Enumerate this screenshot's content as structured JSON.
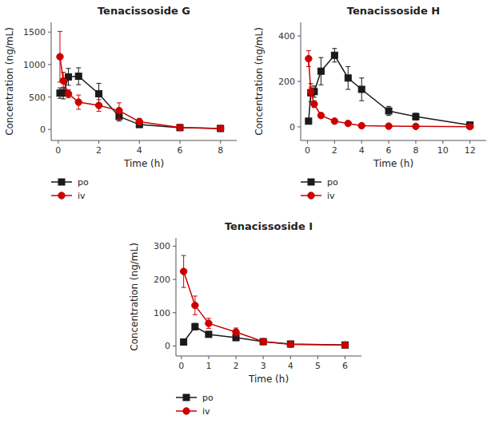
{
  "chart_data": [
    {
      "type": "line",
      "title": "Tenacissoside G",
      "x_label": "Time (h)",
      "y_label": "Concentration (ng/mL)",
      "xlim": [
        -0.35,
        8.8
      ],
      "ylim": [
        -170,
        1650
      ],
      "xticks": [
        0,
        2,
        4,
        6,
        8
      ],
      "yticks": [
        0,
        500,
        1000,
        1500
      ],
      "grid": false,
      "legend": "below",
      "x": [
        0.083,
        0.25,
        0.5,
        1.0,
        2.0,
        3.0,
        4.0,
        6.0,
        8.0
      ],
      "series": [
        {
          "name": "po",
          "color": "#1a1a1a",
          "marker": "square",
          "line_style": "solid",
          "values": [
            560,
            560,
            810,
            820,
            550,
            200,
            75,
            28,
            15
          ],
          "errors": [
            80,
            90,
            130,
            130,
            160,
            70,
            35,
            15,
            10
          ]
        },
        {
          "name": "iv",
          "color": "#cc0000",
          "marker": "circle",
          "line_style": "solid",
          "values": [
            1120,
            750,
            550,
            420,
            370,
            290,
            120,
            30,
            15
          ],
          "errors": [
            390,
            130,
            60,
            110,
            90,
            120,
            50,
            20,
            8
          ]
        }
      ]
    },
    {
      "type": "line",
      "title": "Tenacissoside H",
      "x_label": "Time (h)",
      "y_label": "Concentration (ng/mL)",
      "xlim": [
        -0.5,
        13.2
      ],
      "ylim": [
        -60,
        460
      ],
      "xticks": [
        0,
        2,
        4,
        6,
        8,
        10,
        12
      ],
      "yticks": [
        0,
        200,
        400
      ],
      "grid": false,
      "legend": "below",
      "x": [
        0.083,
        0.25,
        0.5,
        1.0,
        2.0,
        3.0,
        4.0,
        6.0,
        8.0,
        12.0
      ],
      "series": [
        {
          "name": "po",
          "color": "#1a1a1a",
          "marker": "square",
          "line_style": "solid",
          "values": [
            25,
            150,
            155,
            245,
            315,
            215,
            165,
            70,
            45,
            8
          ],
          "errors": [
            10,
            40,
            25,
            60,
            30,
            50,
            50,
            20,
            15,
            5
          ]
        },
        {
          "name": "iv",
          "color": "#cc0000",
          "marker": "circle",
          "line_style": "solid",
          "values": [
            300,
            155,
            100,
            50,
            25,
            15,
            5,
            3,
            2,
            1
          ],
          "errors": [
            35,
            20,
            15,
            10,
            8,
            5,
            3,
            2,
            1,
            0.5
          ]
        }
      ]
    },
    {
      "type": "line",
      "title": "Tenacissoside I",
      "x_label": "Time (h)",
      "y_label": "Concentration (ng/mL)",
      "xlim": [
        -0.2,
        6.6
      ],
      "ylim": [
        -30,
        325
      ],
      "xticks": [
        0,
        1,
        2,
        3,
        4,
        5,
        6
      ],
      "yticks": [
        0,
        100,
        200,
        300
      ],
      "grid": false,
      "legend": "below",
      "x": [
        0.083,
        0.5,
        1.0,
        2.0,
        3.0,
        4.0,
        6.0
      ],
      "series": [
        {
          "name": "po",
          "color": "#1a1a1a",
          "marker": "square",
          "line_style": "solid",
          "values": [
            12,
            58,
            35,
            25,
            13,
            6,
            3
          ],
          "errors": [
            5,
            10,
            8,
            7,
            5,
            3,
            2
          ]
        },
        {
          "name": "iv",
          "color": "#cc0000",
          "marker": "circle",
          "line_style": "solid",
          "values": [
            224,
            122,
            68,
            42,
            13,
            5,
            3
          ],
          "errors": [
            48,
            28,
            15,
            12,
            4,
            3,
            2
          ]
        }
      ]
    }
  ]
}
